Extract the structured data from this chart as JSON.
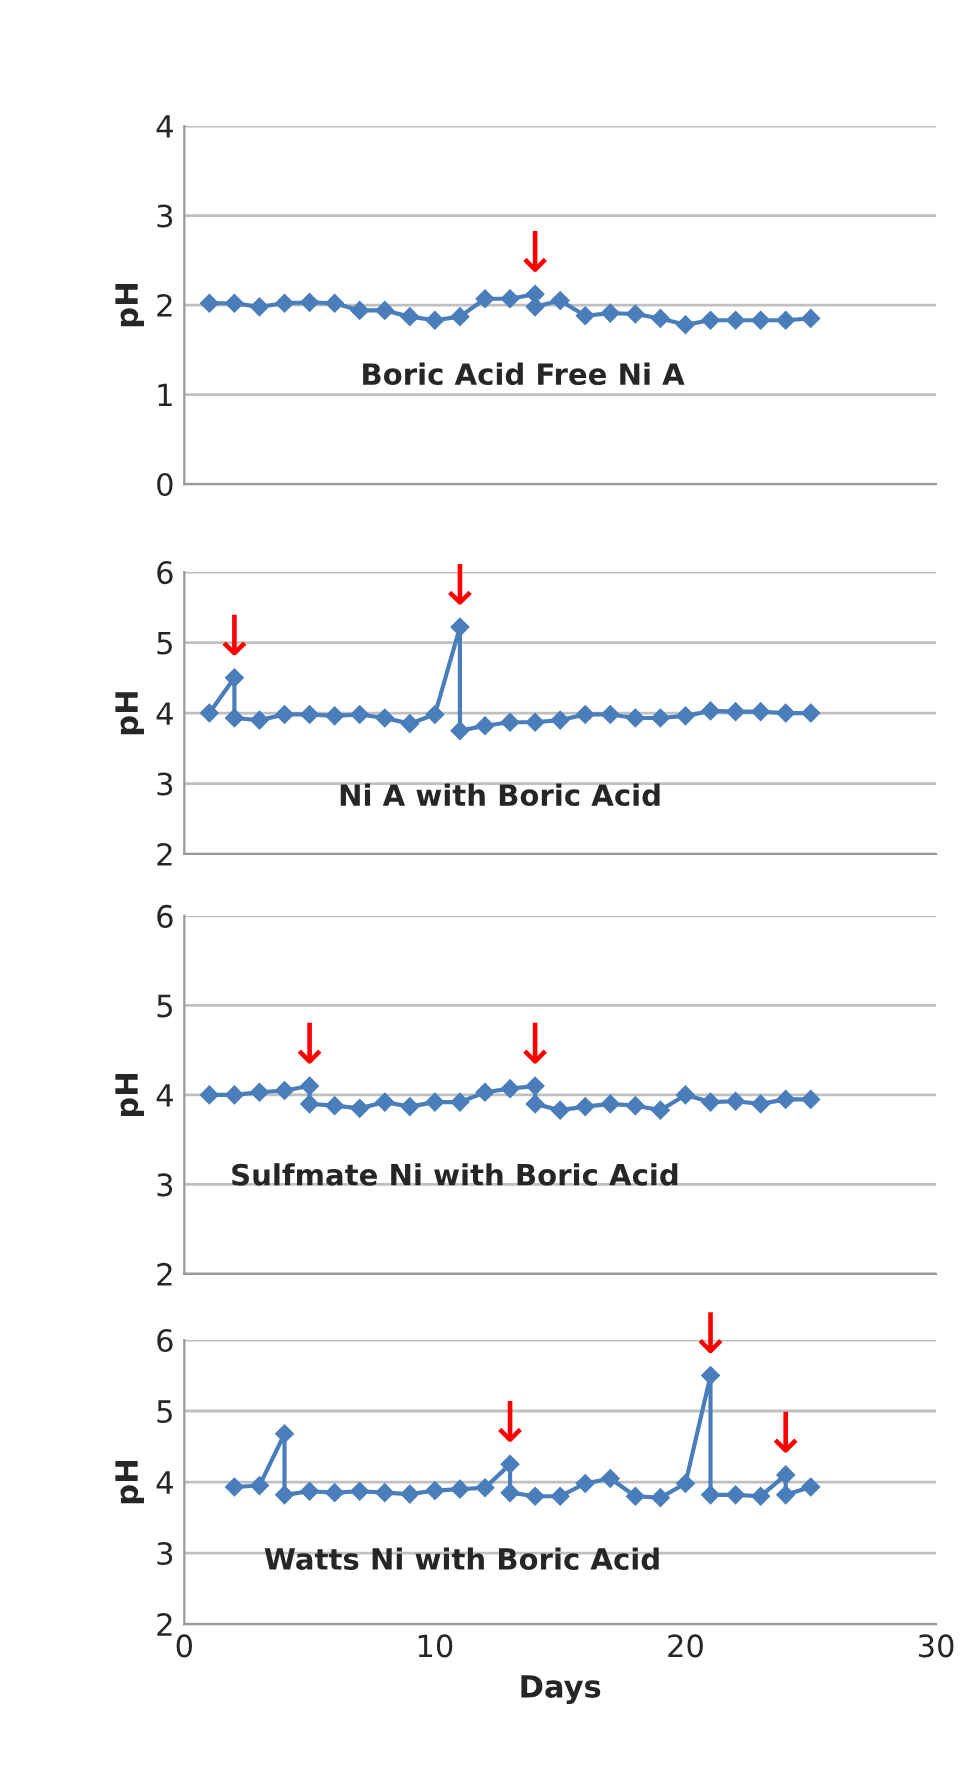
{
  "chart_data": [
    {
      "type": "line",
      "ylabel": "pH",
      "xlim": [
        0,
        30
      ],
      "xticks": [
        0,
        10,
        20,
        30
      ],
      "ylim": [
        0,
        4
      ],
      "yticks": [
        0,
        1,
        2,
        3,
        4
      ],
      "tick_labels": "y",
      "grid": "y",
      "marker": "diamond",
      "line_style": "solid",
      "series": [
        {
          "color": "#4a7ebb",
          "x": [
            1,
            2,
            3,
            4,
            5,
            6,
            7,
            8,
            9,
            10,
            11,
            12,
            13,
            14,
            14,
            15,
            16,
            17,
            18,
            19,
            20,
            21,
            22,
            23,
            24,
            25
          ],
          "values": [
            2.02,
            2.02,
            1.98,
            2.02,
            2.03,
            2.02,
            1.94,
            1.94,
            1.87,
            1.83,
            1.87,
            2.07,
            2.07,
            2.12,
            1.98,
            2.05,
            1.88,
            1.91,
            1.9,
            1.85,
            1.78,
            1.83,
            1.83,
            1.83,
            1.83,
            1.85
          ]
        }
      ],
      "annotations": [
        "Boric Acid Free Ni A",
        {
          "text": "↓",
          "x": 14,
          "y": 2.12
        }
      ]
    },
    {
      "type": "line",
      "ylabel": "pH",
      "xlim": [
        0,
        30
      ],
      "xticks": [
        0,
        10,
        20,
        30
      ],
      "ylim": [
        2,
        6
      ],
      "yticks": [
        2,
        3,
        4,
        5,
        6
      ],
      "tick_labels": "y",
      "grid": "y",
      "marker": "diamond",
      "line_style": "solid",
      "series": [
        {
          "color": "#4a7ebb",
          "x": [
            1,
            2,
            2,
            3,
            4,
            5,
            6,
            7,
            8,
            9,
            10,
            11,
            11,
            12,
            13,
            14,
            15,
            16,
            17,
            18,
            19,
            20,
            21,
            22,
            23,
            24,
            25
          ],
          "values": [
            4.0,
            4.5,
            3.93,
            3.9,
            3.98,
            3.98,
            3.96,
            3.98,
            3.93,
            3.85,
            3.98,
            5.22,
            3.75,
            3.82,
            3.87,
            3.87,
            3.9,
            3.98,
            3.98,
            3.93,
            3.93,
            3.96,
            4.03,
            4.02,
            4.02,
            4.0,
            4.0
          ]
        }
      ],
      "annotations": [
        "Ni A with Boric Acid",
        {
          "text": "↓",
          "x": 2,
          "y": 4.5
        },
        {
          "text": "↓",
          "x": 11,
          "y": 5.22
        }
      ]
    },
    {
      "type": "line",
      "ylabel": "pH",
      "xlim": [
        0,
        30
      ],
      "xticks": [
        0,
        10,
        20,
        30
      ],
      "ylim": [
        2,
        6
      ],
      "yticks": [
        2,
        3,
        4,
        5,
        6
      ],
      "tick_labels": "y",
      "grid": "y",
      "marker": "diamond",
      "line_style": "solid",
      "series": [
        {
          "color": "#4a7ebb",
          "x": [
            1,
            2,
            3,
            4,
            5,
            5,
            6,
            7,
            8,
            9,
            10,
            11,
            12,
            13,
            14,
            14,
            15,
            16,
            17,
            18,
            19,
            20,
            21,
            22,
            23,
            24,
            25
          ],
          "values": [
            4.0,
            4.0,
            4.03,
            4.05,
            4.1,
            3.9,
            3.88,
            3.85,
            3.92,
            3.87,
            3.92,
            3.92,
            4.03,
            4.07,
            4.1,
            3.9,
            3.83,
            3.87,
            3.9,
            3.88,
            3.83,
            4.0,
            3.92,
            3.93,
            3.9,
            3.95,
            3.95
          ]
        }
      ],
      "annotations": [
        "Sulfmate Ni with Boric Acid",
        {
          "text": "↓",
          "x": 5,
          "y": 4.1
        },
        {
          "text": "↓",
          "x": 14,
          "y": 4.1
        }
      ]
    },
    {
      "type": "line",
      "xlabel": "Days",
      "ylabel": "pH",
      "xlim": [
        0,
        30
      ],
      "xticks": [
        0,
        10,
        20,
        30
      ],
      "ylim": [
        2,
        6
      ],
      "yticks": [
        2,
        3,
        4,
        5,
        6
      ],
      "grid": "y",
      "marker": "diamond",
      "line_style": "solid",
      "series": [
        {
          "color": "#4a7ebb",
          "x": [
            2,
            3,
            4,
            4,
            5,
            6,
            7,
            8,
            9,
            10,
            11,
            12,
            13,
            13,
            14,
            15,
            16,
            17,
            18,
            19,
            20,
            21,
            21,
            22,
            23,
            24,
            24,
            25
          ],
          "values": [
            3.93,
            3.95,
            4.68,
            3.82,
            3.87,
            3.85,
            3.87,
            3.85,
            3.83,
            3.88,
            3.9,
            3.92,
            4.25,
            3.85,
            3.8,
            3.8,
            3.98,
            4.05,
            3.8,
            3.78,
            3.98,
            5.5,
            3.82,
            3.82,
            3.8,
            4.1,
            3.82,
            3.93
          ]
        }
      ],
      "annotations": [
        "Watts Ni with Boric Acid",
        {
          "text": "↓",
          "x": 13,
          "y": 4.25
        },
        {
          "text": "↓",
          "x": 21,
          "y": 5.5
        },
        {
          "text": "↓",
          "x": 24,
          "y": 4.1
        }
      ]
    }
  ]
}
